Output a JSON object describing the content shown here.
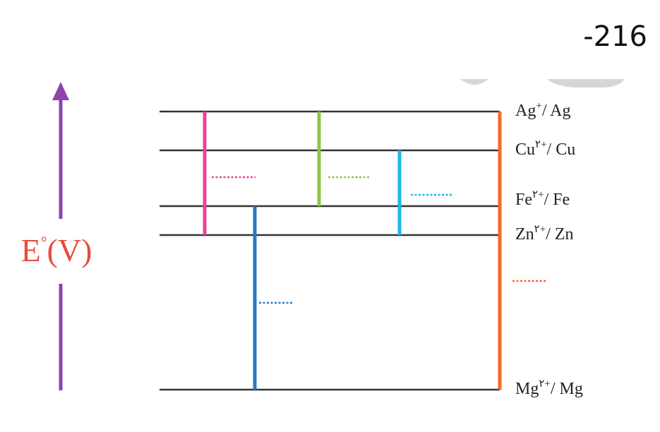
{
  "page_number": "-216",
  "axis_label": {
    "symbol": "E",
    "degree": "°",
    "unit": "(V)"
  },
  "levels": [
    {
      "symbol": "Ag",
      "charge": "+",
      "ref": "/ Ag"
    },
    {
      "symbol": "Cu",
      "charge": "۲+",
      "ref": "/ Cu"
    },
    {
      "symbol": "Fe",
      "charge": "۲+",
      "ref": "/ Fe"
    },
    {
      "symbol": "Zn",
      "charge": "۲+",
      "ref": "/ Zn"
    },
    {
      "symbol": "Mg",
      "charge": "۲+",
      "ref": "/ Mg"
    }
  ]
}
